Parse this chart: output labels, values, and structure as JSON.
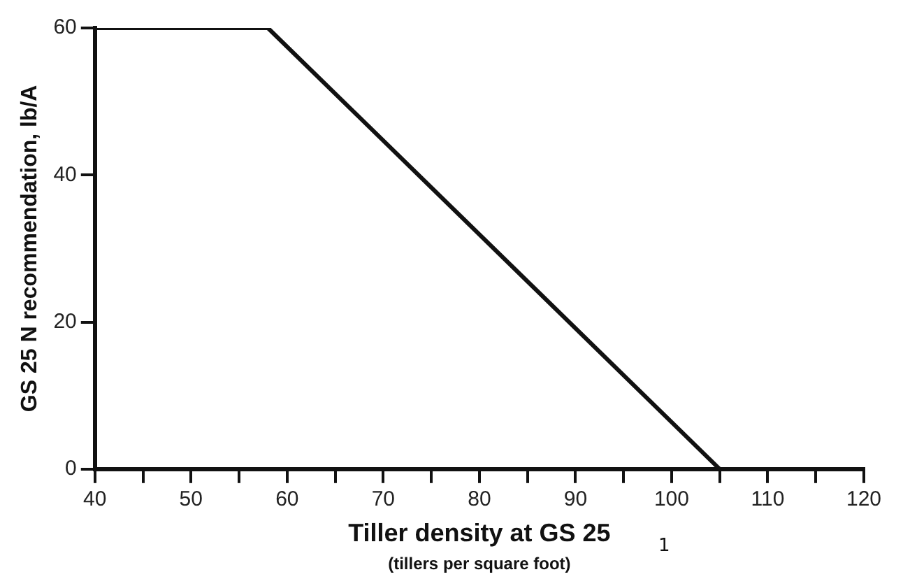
{
  "chart_data": {
    "type": "line",
    "xlabel": "Tiller density at GS 25",
    "ylabel": "GS 25 N recommendation, lb/A",
    "x": [
      40,
      58,
      105
    ],
    "series": [
      {
        "color": "#111111",
        "values": [
          60,
          60,
          0
        ]
      }
    ],
    "xlim": [
      40,
      120
    ],
    "ylim": [
      0,
      60
    ],
    "xticks": [
      40,
      {
        "value": 45,
        "label": null
      },
      50,
      {
        "value": 55,
        "label": null
      },
      60,
      {
        "value": 65,
        "label": null
      },
      70,
      {
        "value": 75,
        "label": null
      },
      80,
      {
        "value": 85,
        "label": null
      },
      90,
      {
        "value": 95,
        "label": null
      },
      100,
      {
        "value": 105,
        "label": null
      },
      110,
      {
        "value": 115,
        "label": null
      },
      120
    ],
    "yticks": [
      0,
      20,
      40,
      60
    ],
    "grid": false,
    "legend": false,
    "marker": "none",
    "line_style": "solid",
    "annotations": [
      "(tillers per square foot)",
      "1"
    ]
  }
}
